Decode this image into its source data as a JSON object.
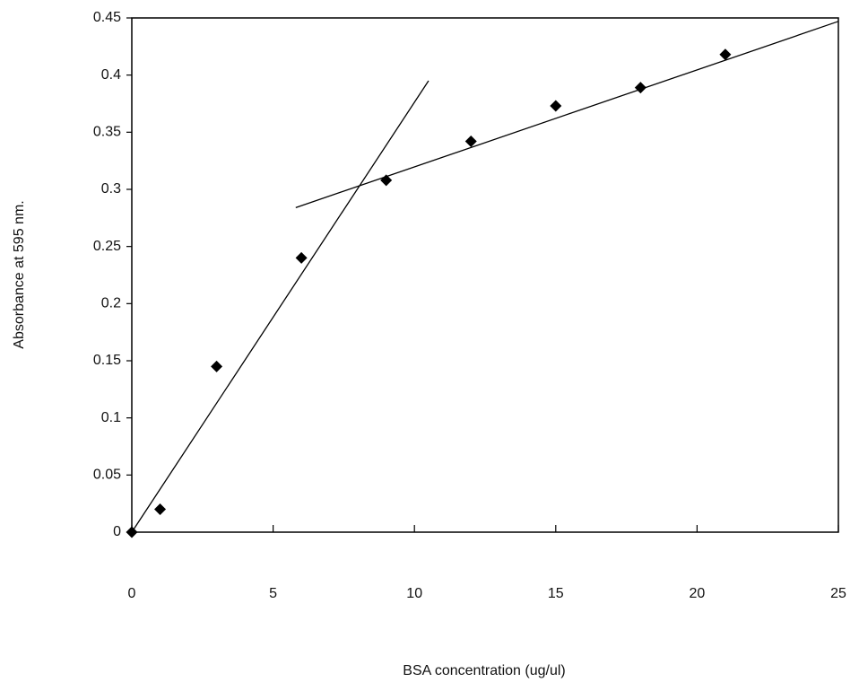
{
  "chart_data": {
    "type": "scatter",
    "x_label": "BSA concentration (ug/ul)",
    "y_label": "Absorbance at 595 nm.",
    "x": [
      0,
      1,
      3,
      6,
      9,
      12,
      15,
      18,
      21
    ],
    "values": [
      0,
      0.02,
      0.145,
      0.24,
      0.308,
      0.342,
      0.373,
      0.389,
      0.418
    ],
    "color": "#000000",
    "lines": [
      {
        "x": [
          0,
          10.5
        ],
        "values": [
          0,
          0.395
        ]
      },
      {
        "x": [
          5.8,
          25
        ],
        "values": [
          0.284,
          0.447
        ]
      }
    ],
    "xlim": [
      0,
      25
    ],
    "xticks": [
      0,
      5,
      10,
      15,
      20,
      25
    ],
    "ylim": [
      0,
      0.45
    ],
    "yticks": [
      0,
      0.05,
      0.1,
      0.15,
      0.2,
      0.25,
      0.3,
      0.35,
      0.4,
      0.45
    ],
    "grid": false
  }
}
